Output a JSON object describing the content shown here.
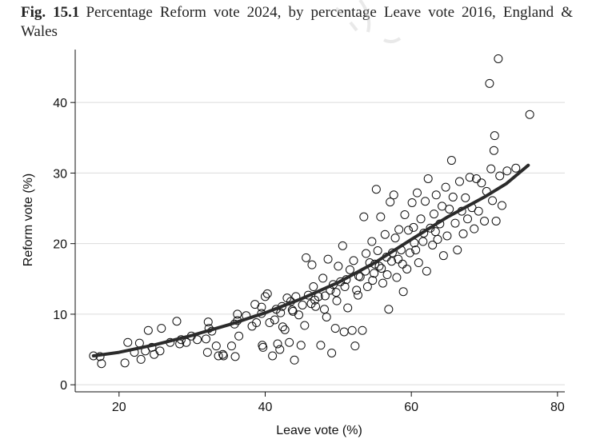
{
  "caption": {
    "label": "Fig. 15.1",
    "text": "Percentage Reform vote 2024, by percentage Leave vote 2016, England & Wales"
  },
  "colors": {
    "ink": "#111111",
    "grid": "#dcdcdc",
    "fit": "#2b2b2b"
  },
  "chart_data": {
    "type": "scatter",
    "title": "Percentage Reform vote 2024, by percentage Leave vote 2016, England & Wales",
    "xlabel": "Leave vote (%)",
    "ylabel": "Reform vote (%)",
    "xlim": [
      14,
      81
    ],
    "ylim": [
      -1,
      47.5
    ],
    "xticks": [
      20,
      40,
      60,
      80
    ],
    "yticks": [
      0,
      10,
      20,
      30,
      40
    ],
    "grid": true,
    "marker": "hollow-circle",
    "points": [
      [
        16.5,
        4.1
      ],
      [
        17.4,
        4.0
      ],
      [
        17.6,
        3.0
      ],
      [
        20.8,
        3.1
      ],
      [
        21.2,
        6.0
      ],
      [
        22.1,
        4.6
      ],
      [
        22.8,
        5.9
      ],
      [
        23.0,
        3.6
      ],
      [
        23.6,
        4.8
      ],
      [
        24.0,
        7.7
      ],
      [
        24.5,
        5.3
      ],
      [
        24.8,
        4.3
      ],
      [
        25.6,
        4.8
      ],
      [
        25.8,
        8.0
      ],
      [
        27.0,
        6.0
      ],
      [
        27.9,
        9.0
      ],
      [
        28.3,
        5.8
      ],
      [
        28.5,
        6.4
      ],
      [
        29.2,
        6.0
      ],
      [
        29.9,
        6.9
      ],
      [
        30.7,
        6.4
      ],
      [
        31.9,
        6.5
      ],
      [
        32.1,
        4.6
      ],
      [
        32.2,
        8.9
      ],
      [
        32.3,
        8.0
      ],
      [
        32.7,
        7.6
      ],
      [
        33.3,
        5.5
      ],
      [
        33.6,
        4.1
      ],
      [
        34.2,
        4.3
      ],
      [
        34.3,
        4.1
      ],
      [
        35.4,
        5.5
      ],
      [
        35.8,
        8.6
      ],
      [
        35.9,
        4.0
      ],
      [
        36.2,
        9.1
      ],
      [
        36.4,
        6.9
      ],
      [
        36.2,
        10.0
      ],
      [
        37.4,
        9.8
      ],
      [
        38.2,
        8.3
      ],
      [
        38.6,
        11.4
      ],
      [
        38.8,
        8.8
      ],
      [
        39.5,
        10.1
      ],
      [
        39.5,
        11.0
      ],
      [
        39.6,
        5.6
      ],
      [
        39.7,
        5.3
      ],
      [
        40.0,
        12.5
      ],
      [
        40.3,
        12.9
      ],
      [
        40.6,
        8.8
      ],
      [
        41.0,
        4.1
      ],
      [
        41.3,
        9.2
      ],
      [
        41.5,
        10.7
      ],
      [
        41.7,
        5.8
      ],
      [
        42.0,
        5.0
      ],
      [
        42.3,
        11.1
      ],
      [
        42.4,
        8.2
      ],
      [
        42.7,
        7.8
      ],
      [
        43.0,
        12.3
      ],
      [
        43.3,
        6.0
      ],
      [
        43.5,
        11.8
      ],
      [
        43.8,
        10.4
      ],
      [
        44.0,
        3.5
      ],
      [
        44.2,
        12.5
      ],
      [
        44.6,
        9.9
      ],
      [
        44.9,
        5.6
      ],
      [
        45.4,
        8.4
      ],
      [
        45.6,
        18.0
      ],
      [
        45.9,
        12.7
      ],
      [
        46.3,
        11.5
      ],
      [
        46.4,
        17.0
      ],
      [
        46.6,
        13.9
      ],
      [
        46.9,
        11.1
      ],
      [
        47.3,
        12.5
      ],
      [
        47.6,
        5.6
      ],
      [
        47.9,
        15.1
      ],
      [
        48.1,
        10.7
      ],
      [
        48.4,
        9.6
      ],
      [
        48.6,
        17.8
      ],
      [
        48.9,
        13.4
      ],
      [
        49.1,
        4.5
      ],
      [
        49.3,
        14.2
      ],
      [
        49.6,
        8.0
      ],
      [
        49.8,
        11.9
      ],
      [
        50.0,
        16.8
      ],
      [
        50.3,
        14.6
      ],
      [
        50.6,
        19.7
      ],
      [
        50.8,
        7.5
      ],
      [
        51.1,
        14.9
      ],
      [
        51.3,
        10.9
      ],
      [
        51.6,
        16.3
      ],
      [
        51.9,
        7.7
      ],
      [
        52.1,
        17.6
      ],
      [
        52.3,
        5.5
      ],
      [
        52.5,
        13.4
      ],
      [
        52.7,
        12.7
      ],
      [
        53.0,
        15.3
      ],
      [
        53.3,
        7.7
      ],
      [
        53.5,
        23.8
      ],
      [
        53.8,
        18.6
      ],
      [
        54.0,
        13.9
      ],
      [
        54.3,
        17.3
      ],
      [
        54.6,
        20.3
      ],
      [
        54.9,
        15.8
      ],
      [
        55.2,
        27.7
      ],
      [
        55.4,
        19.0
      ],
      [
        55.6,
        16.8
      ],
      [
        55.8,
        23.8
      ],
      [
        56.1,
        14.4
      ],
      [
        56.4,
        21.3
      ],
      [
        56.6,
        18.1
      ],
      [
        56.9,
        10.7
      ],
      [
        57.1,
        25.9
      ],
      [
        57.3,
        17.5
      ],
      [
        57.6,
        26.9
      ],
      [
        57.8,
        20.8
      ],
      [
        58.0,
        15.2
      ],
      [
        58.3,
        22.0
      ],
      [
        58.6,
        19.1
      ],
      [
        58.9,
        13.2
      ],
      [
        59.1,
        24.1
      ],
      [
        59.4,
        16.4
      ],
      [
        59.6,
        21.9
      ],
      [
        59.8,
        18.7
      ],
      [
        60.1,
        25.8
      ],
      [
        60.3,
        22.3
      ],
      [
        60.6,
        19.1
      ],
      [
        60.8,
        27.2
      ],
      [
        61.0,
        17.3
      ],
      [
        61.3,
        23.5
      ],
      [
        61.6,
        20.3
      ],
      [
        61.9,
        26.0
      ],
      [
        62.1,
        16.1
      ],
      [
        62.3,
        29.2
      ],
      [
        62.6,
        22.2
      ],
      [
        62.9,
        19.8
      ],
      [
        63.1,
        24.2
      ],
      [
        63.4,
        26.9
      ],
      [
        63.6,
        20.6
      ],
      [
        63.9,
        22.8
      ],
      [
        64.2,
        25.3
      ],
      [
        64.4,
        18.3
      ],
      [
        64.7,
        28.0
      ],
      [
        64.9,
        21.1
      ],
      [
        65.2,
        24.9
      ],
      [
        65.5,
        31.8
      ],
      [
        65.7,
        26.6
      ],
      [
        66.0,
        22.9
      ],
      [
        66.3,
        19.1
      ],
      [
        66.6,
        28.8
      ],
      [
        66.9,
        24.6
      ],
      [
        67.1,
        21.4
      ],
      [
        67.4,
        26.5
      ],
      [
        67.7,
        23.5
      ],
      [
        68.0,
        29.4
      ],
      [
        68.3,
        25.1
      ],
      [
        68.6,
        22.1
      ],
      [
        68.9,
        29.2
      ],
      [
        69.2,
        24.6
      ],
      [
        69.6,
        28.6
      ],
      [
        70.0,
        23.2
      ],
      [
        70.3,
        27.4
      ],
      [
        70.7,
        42.7
      ],
      [
        70.9,
        30.6
      ],
      [
        71.1,
        26.1
      ],
      [
        71.4,
        35.3
      ],
      [
        71.3,
        33.2
      ],
      [
        71.6,
        23.2
      ],
      [
        71.9,
        46.2
      ],
      [
        72.1,
        29.6
      ],
      [
        72.4,
        25.4
      ],
      [
        73.1,
        30.3
      ],
      [
        74.3,
        30.7
      ],
      [
        76.2,
        38.3
      ],
      [
        55.0,
        17.1
      ],
      [
        55.9,
        16.5
      ],
      [
        57.4,
        18.7
      ],
      [
        58.2,
        17.8
      ],
      [
        60.4,
        20.1
      ],
      [
        61.7,
        21.5
      ],
      [
        63.3,
        21.7
      ],
      [
        52.8,
        15.4
      ],
      [
        53.7,
        16.1
      ],
      [
        50.9,
        13.9
      ],
      [
        49.7,
        13.1
      ],
      [
        48.2,
        12.6
      ],
      [
        46.8,
        12.0
      ],
      [
        45.1,
        11.3
      ],
      [
        43.7,
        10.6
      ],
      [
        42.1,
        10.2
      ],
      [
        58.8,
        17.1
      ],
      [
        56.7,
        15.6
      ],
      [
        54.7,
        14.8
      ]
    ],
    "fit_line": {
      "x": [
        16.5,
        20,
        25,
        30,
        35,
        40,
        45,
        50,
        55,
        60,
        65,
        70,
        73,
        76
      ],
      "y": [
        4.1,
        4.6,
        5.7,
        7.0,
        8.5,
        10.2,
        12.2,
        14.5,
        17.3,
        20.6,
        23.8,
        26.6,
        28.5,
        31.1
      ]
    }
  }
}
